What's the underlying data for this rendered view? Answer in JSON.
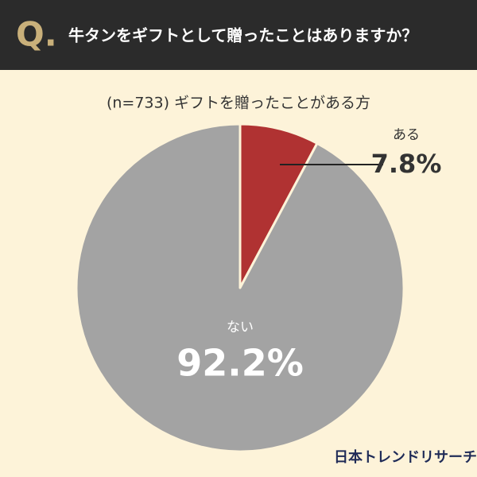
{
  "header": {
    "mark": "Q."
  },
  "chart_data": {
    "type": "pie",
    "title": "牛タンをギフトとして贈ったことはありますか？",
    "subtitle": "(n=733) ギフトを贈ったことがある方",
    "categories": [
      "ある",
      "ない"
    ],
    "values": [
      7.8,
      92.2
    ],
    "value_labels": [
      "7.8%",
      "92.2%"
    ],
    "colors": [
      "#b03232",
      "#a3a3a3"
    ]
  },
  "footer": {
    "brand": "日本トレンドリサーチ"
  }
}
